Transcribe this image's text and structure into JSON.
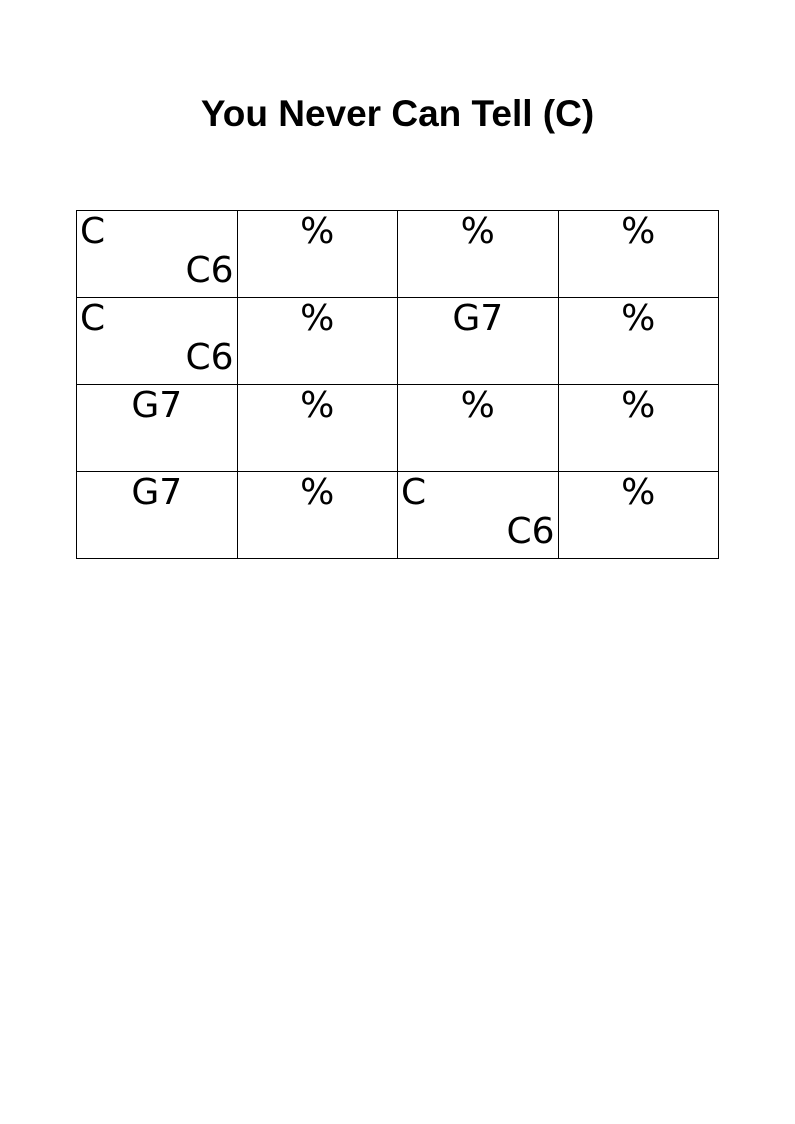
{
  "title": "You Never Can Tell (C)",
  "rows": [
    [
      {
        "type": "split",
        "first": "C",
        "second": "C6"
      },
      {
        "type": "single",
        "chord": "%"
      },
      {
        "type": "single",
        "chord": "%"
      },
      {
        "type": "single",
        "chord": "%"
      }
    ],
    [
      {
        "type": "split",
        "first": "C",
        "second": "C6"
      },
      {
        "type": "single",
        "chord": "%"
      },
      {
        "type": "single",
        "chord": "G7"
      },
      {
        "type": "single",
        "chord": "%"
      }
    ],
    [
      {
        "type": "single",
        "chord": "G7"
      },
      {
        "type": "single",
        "chord": "%"
      },
      {
        "type": "single",
        "chord": "%"
      },
      {
        "type": "single",
        "chord": "%"
      }
    ],
    [
      {
        "type": "single",
        "chord": "G7"
      },
      {
        "type": "single",
        "chord": "%"
      },
      {
        "type": "split",
        "first": "C",
        "second": "C6"
      },
      {
        "type": "single",
        "chord": "%"
      }
    ]
  ]
}
